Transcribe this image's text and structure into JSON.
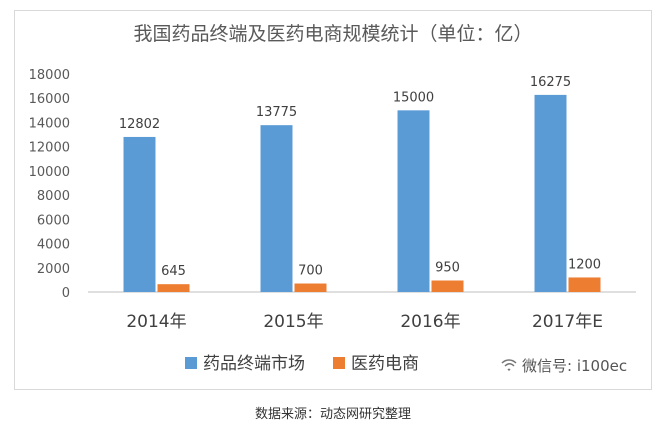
{
  "chart_data": {
    "type": "bar",
    "title": "我国药品终端及医药电商规模统计（单位：亿）",
    "categories": [
      "2014年",
      "2015年",
      "2016年",
      "2017年E"
    ],
    "series": [
      {
        "name": "药品终端市场",
        "values": [
          12802,
          13775,
          15000,
          16275
        ],
        "color": "#5b9bd5"
      },
      {
        "name": "医药电商",
        "values": [
          645,
          700,
          950,
          1200
        ],
        "color": "#ed7d31"
      }
    ],
    "ylim": [
      0,
      18000
    ],
    "yticks": [
      0,
      2000,
      4000,
      6000,
      8000,
      10000,
      12000,
      14000,
      16000,
      18000
    ],
    "grid": false,
    "legend_position": "bottom",
    "xlabel": "",
    "ylabel": ""
  },
  "watermark": "微信号: i100ec",
  "source": "数据来源：动态网研究整理"
}
